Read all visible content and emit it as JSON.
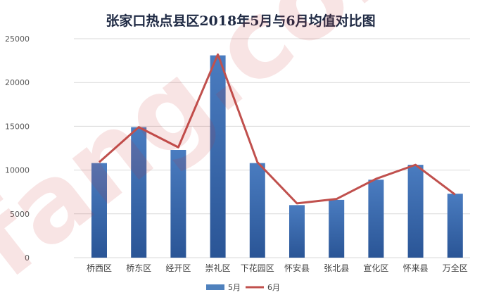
{
  "chart_data": {
    "type": "bar",
    "title": "张家口热点县区2018年5月与6月均值对比图",
    "categories": [
      "桥西区",
      "桥东区",
      "经开区",
      "崇礼区",
      "下花园区",
      "怀安县",
      "张北县",
      "宣化区",
      "怀来县",
      "万全区"
    ],
    "series": [
      {
        "name": "5月",
        "type": "bar",
        "values": [
          10800,
          14900,
          12300,
          23100,
          10800,
          6000,
          6600,
          8900,
          10600,
          7300
        ]
      },
      {
        "name": "6月",
        "type": "line",
        "values": [
          10900,
          14900,
          12600,
          23200,
          10900,
          6200,
          6700,
          9000,
          10600,
          7200
        ]
      }
    ],
    "y_ticks": [
      "0",
      "5000",
      "10000",
      "15000",
      "20000",
      "25000"
    ],
    "ylim": [
      0,
      25000
    ],
    "grid": true,
    "legend": "bottom",
    "colors": {
      "bar": "#2e5f9e",
      "bar_light": "#4f81bd",
      "line": "#c0504d"
    }
  },
  "watermark": "fang.com"
}
